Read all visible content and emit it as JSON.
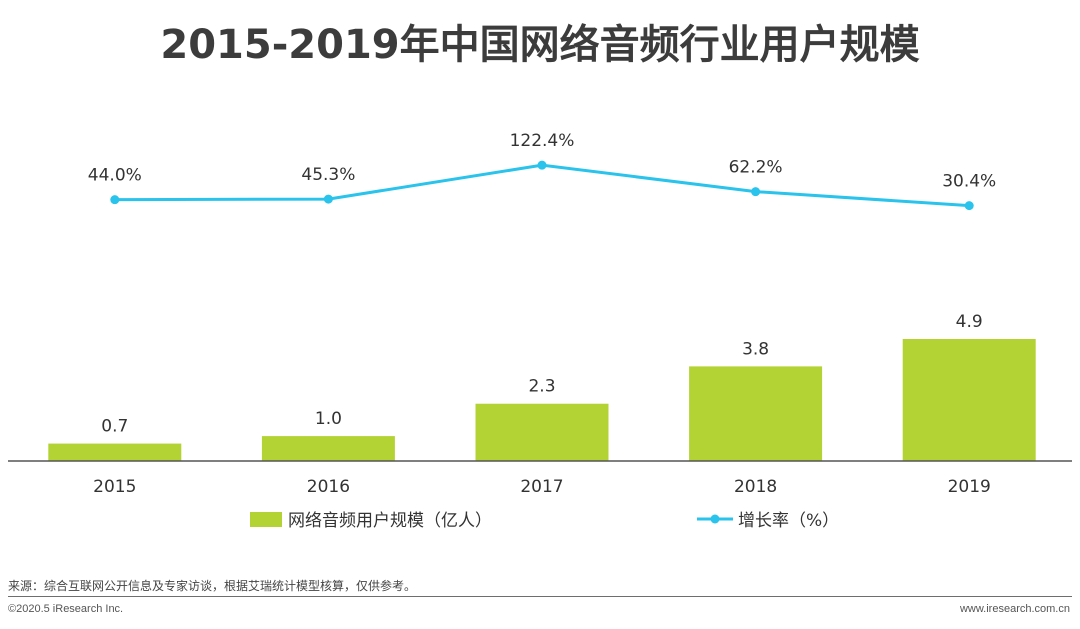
{
  "title": "2015-2019年中国网络音频行业用户规模",
  "source_note": "来源：综合互联网公开信息及专家访谈，根据艾瑞统计模型核算，仅供参考。",
  "copyright": "©2020.5 iResearch Inc.",
  "website": "www.iresearch.com.cn",
  "colors": {
    "bar": "#b3d334",
    "line": "#29c3ec",
    "axis": "#555555",
    "title": "#3c3c3c"
  },
  "chart_data": {
    "type": "bar",
    "categories": [
      "2015",
      "2016",
      "2017",
      "2018",
      "2019"
    ],
    "series": [
      {
        "name": "网络音频用户规模（亿人）",
        "type": "bar",
        "values": [
          0.7,
          1.0,
          2.3,
          3.8,
          4.9
        ],
        "labels": [
          "0.7",
          "1.0",
          "2.3",
          "3.8",
          "4.9"
        ]
      },
      {
        "name": "增长率（%）",
        "type": "line",
        "values": [
          44.0,
          45.3,
          122.4,
          62.2,
          30.4
        ],
        "labels": [
          "44.0%",
          "45.3%",
          "122.4%",
          "62.2%",
          "30.4%"
        ]
      }
    ],
    "legend_position": "bottom",
    "grid": false
  }
}
